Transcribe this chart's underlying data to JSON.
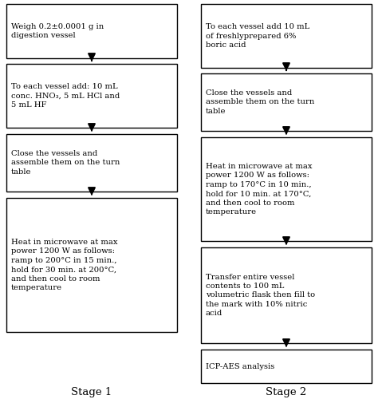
{
  "background_color": "#ffffff",
  "stage1_boxes": [
    "Weigh 0.2±0.0001 g in\ndigestion vessel",
    "To each vessel add: 10 mL\nconc. HNO₃, 5 mL HCl and\n5 mL HF",
    "Close the vessels and\nassemble them on the turn\ntable",
    "Heat in microwave at max\npower 1200 W as follows:\nramp to 200°C in 15 min.,\nhold for 30 min. at 200°C,\nand then cool to room\ntemperature"
  ],
  "stage2_boxes": [
    "To each vessel add 10 mL\nof freshlyprepared 6%\nboric acid",
    "Close the vessels and\nassemble them on the turn\ntable",
    "Heat in microwave at max\npower 1200 W as follows:\nramp to 170°C in 10 min.,\nhold for 10 min. at 170°C,\nand then cool to room\ntemperature",
    "Transfer entire vessel\ncontents to 100 mL\nvolumetric flask then fill to\nthe mark with 10% nitric\nacid",
    "ICP-AES analysis"
  ],
  "stage1_label": "Stage 1",
  "stage2_label": "Stage 2",
  "box_edge_color": "#000000",
  "box_face_color": "#ffffff",
  "text_color": "#000000",
  "arrow_color": "#000000",
  "font_size": 7.2,
  "label_font_size": 9.5
}
